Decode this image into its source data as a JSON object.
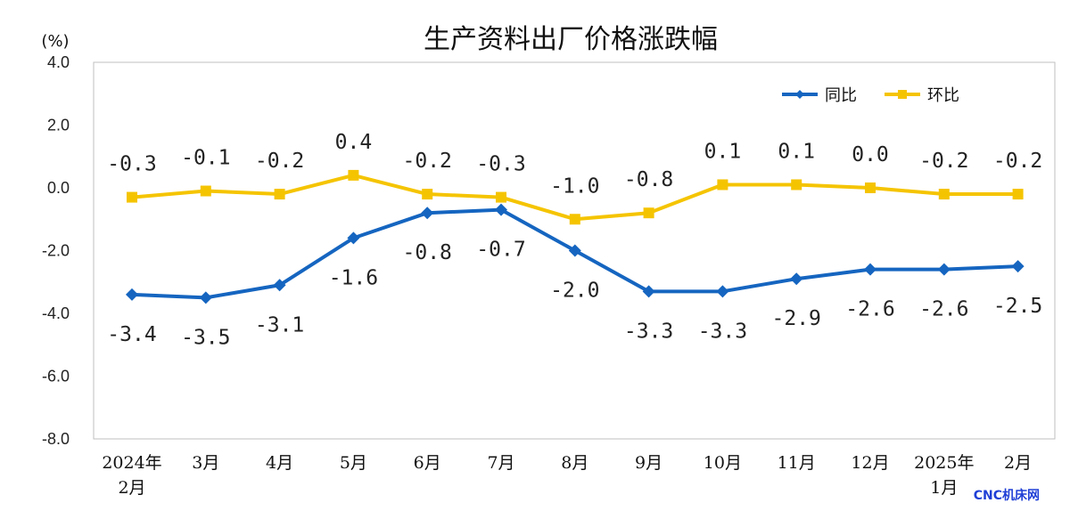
{
  "chart_data": {
    "type": "line",
    "title": "生产资料出厂价格涨跌幅",
    "unit": "(%)",
    "categories": [
      [
        "2024年",
        "2月"
      ],
      [
        "3月"
      ],
      [
        "4月"
      ],
      [
        "5月"
      ],
      [
        "6月"
      ],
      [
        "7月"
      ],
      [
        "8月"
      ],
      [
        "9月"
      ],
      [
        "10月"
      ],
      [
        "11月"
      ],
      [
        "12月"
      ],
      [
        "2025年",
        "1月"
      ],
      [
        "2月"
      ]
    ],
    "ylim": [
      -8.0,
      4.0
    ],
    "yticks": [
      "4.0",
      "2.0",
      "0.0",
      "-2.0",
      "-4.0",
      "-6.0",
      "-8.0"
    ],
    "ytick_values": [
      4,
      2,
      0,
      -2,
      -4,
      -6,
      -8
    ],
    "grid": false,
    "legend_position": "top-right",
    "series": [
      {
        "name": "同比",
        "color": "#1565C0",
        "marker": "diamond",
        "values": [
          -3.4,
          -3.5,
          -3.1,
          -1.6,
          -0.8,
          -0.7,
          -2.0,
          -3.3,
          -3.3,
          -2.9,
          -2.6,
          -2.6,
          -2.5
        ],
        "labels": [
          "-3.4",
          "-3.5",
          "-3.1",
          "-1.6",
          "-0.8",
          "-0.7",
          "-2.0",
          "-3.3",
          "-3.3",
          "-2.9",
          "-2.6",
          "-2.6",
          "-2.5"
        ]
      },
      {
        "name": "环比",
        "color": "#F5C400",
        "marker": "square",
        "values": [
          -0.3,
          -0.1,
          -0.2,
          0.4,
          -0.2,
          -0.3,
          -1.0,
          -0.8,
          0.1,
          0.1,
          0.0,
          -0.2,
          -0.2
        ],
        "labels": [
          "-0.3",
          "-0.1",
          "-0.2",
          "0.4",
          "-0.2",
          "-0.3",
          "-1.0",
          "-0.8",
          "0.1",
          "0.1",
          "0.0",
          "-0.2",
          "-0.2"
        ]
      }
    ]
  },
  "watermark": "CNC机床网"
}
